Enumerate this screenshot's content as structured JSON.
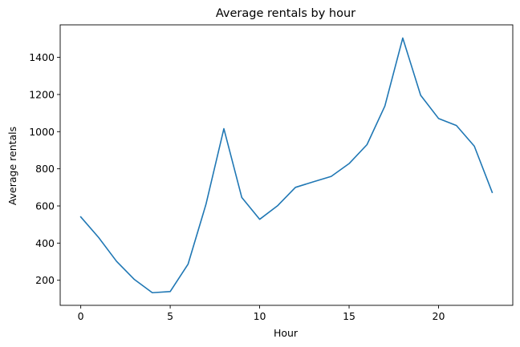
{
  "chart_data": {
    "type": "line",
    "title": "Average rentals by hour",
    "xlabel": "Hour",
    "ylabel": "Average rentals",
    "xlim": [
      -1.15,
      24.15
    ],
    "ylim": [
      65,
      1575
    ],
    "xticks": [
      0,
      5,
      10,
      15,
      20
    ],
    "yticks": [
      200,
      400,
      600,
      800,
      1000,
      1200,
      1400
    ],
    "grid": false,
    "series_color": "#1f77b4",
    "series": [
      {
        "x": [
          0,
          1,
          2,
          3,
          4,
          5,
          6,
          7,
          8,
          9,
          10,
          11,
          12,
          13,
          14,
          15,
          16,
          17,
          18,
          19,
          20,
          21,
          22,
          23
        ],
        "values": [
          541,
          430,
          302,
          204,
          133,
          139,
          287,
          609,
          1016,
          646,
          528,
          601,
          700,
          730,
          759,
          828,
          930,
          1138,
          1504,
          1196,
          1071,
          1033,
          922,
          673
        ]
      }
    ]
  }
}
